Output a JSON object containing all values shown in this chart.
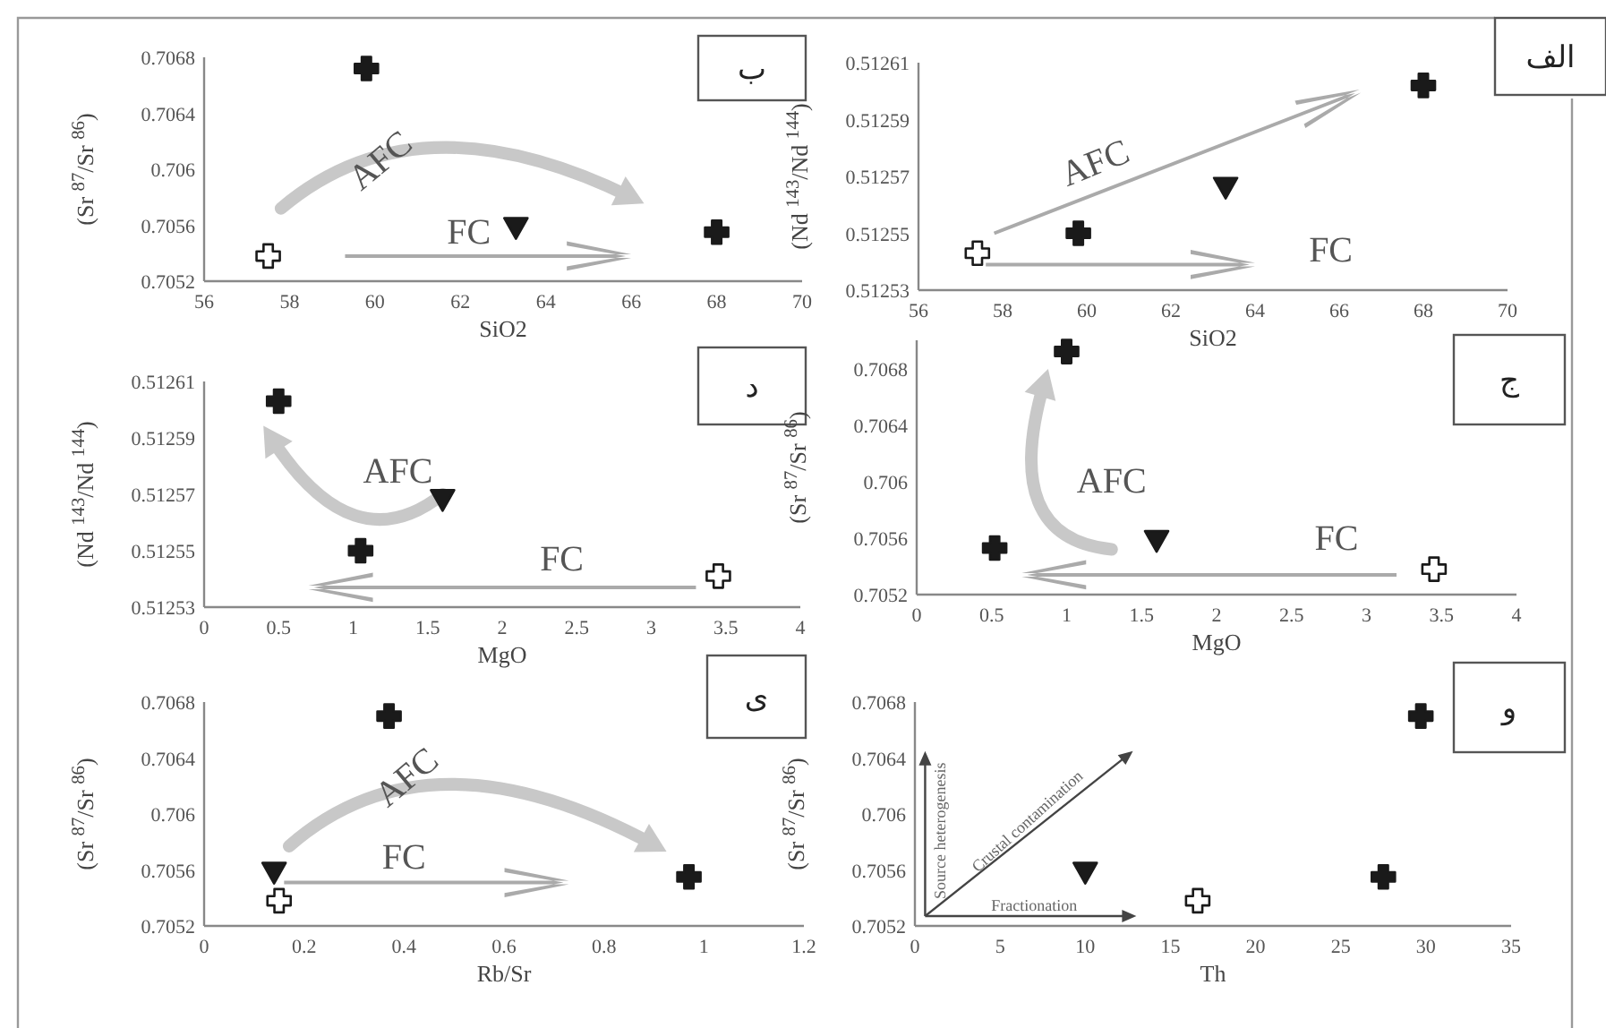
{
  "chart_data": [
    {
      "type": "scatter",
      "title": "ب",
      "xlabel": "SiO2",
      "ylabel": "(Sr $^{87}$/Sr $^{86}$)",
      "xlim": [
        56,
        70
      ],
      "ylim": [
        0.7052,
        0.7068
      ],
      "xticks": [
        56,
        58,
        60,
        62,
        64,
        66,
        68,
        70
      ],
      "yticks": [
        0.7052,
        0.7056,
        0.706,
        0.7064,
        0.7068
      ],
      "annotations": [
        "AFC",
        "FC"
      ],
      "series": [
        {
          "color": "#1a1a1a",
          "marker": "cross",
          "x": [
            59.8,
            68
          ],
          "values": [
            0.70672,
            0.70555
          ]
        },
        {
          "color": "#ffffff",
          "marker": "cross",
          "x": [
            57.5
          ],
          "values": [
            0.70538
          ]
        },
        {
          "color": "#1a1a1a",
          "marker": "triangle",
          "x": [
            63.3
          ],
          "values": [
            0.70558
          ]
        }
      ]
    },
    {
      "type": "scatter",
      "title": "الف",
      "xlabel": "SiO2",
      "ylabel": "(Nd $^{143}$/Nd $^{144}$)",
      "xlim": [
        56,
        70
      ],
      "ylim": [
        0.51253,
        0.51261
      ],
      "xticks": [
        56,
        58,
        60,
        62,
        64,
        66,
        68,
        70
      ],
      "yticks": [
        0.51253,
        0.51255,
        0.51257,
        0.51259,
        0.51261
      ],
      "annotations": [
        "AFC",
        "FC"
      ],
      "series": [
        {
          "color": "#1a1a1a",
          "marker": "cross",
          "x": [
            59.8,
            68
          ],
          "values": [
            0.51255,
            0.512602
          ]
        },
        {
          "color": "#ffffff",
          "marker": "cross",
          "x": [
            57.4
          ],
          "values": [
            0.512543
          ]
        },
        {
          "color": "#1a1a1a",
          "marker": "triangle",
          "x": [
            63.3
          ],
          "values": [
            0.512566
          ]
        }
      ]
    },
    {
      "type": "scatter",
      "title": "د",
      "xlabel": "MgO",
      "ylabel": "(Nd $^{143}$/Nd $^{144}$)",
      "xlim": [
        0,
        4
      ],
      "ylim": [
        0.51253,
        0.51261
      ],
      "xticks": [
        0,
        0.5,
        1,
        1.5,
        2,
        2.5,
        3,
        3.5,
        4
      ],
      "yticks": [
        0.51253,
        0.51255,
        0.51257,
        0.51259,
        0.51261
      ],
      "annotations": [
        "AFC",
        "FC"
      ],
      "series": [
        {
          "color": "#1a1a1a",
          "marker": "cross",
          "x": [
            0.5,
            1.05
          ],
          "values": [
            0.512603,
            0.51255
          ]
        },
        {
          "color": "#ffffff",
          "marker": "cross",
          "x": [
            3.45
          ],
          "values": [
            0.512541
          ]
        },
        {
          "color": "#1a1a1a",
          "marker": "triangle",
          "x": [
            1.6
          ],
          "values": [
            0.512568
          ]
        }
      ]
    },
    {
      "type": "scatter",
      "title": "ج",
      "xlabel": "MgO",
      "ylabel": "(Sr $^{87}$/Sr $^{86}$)",
      "xlim": [
        0,
        4
      ],
      "ylim": [
        0.7052,
        0.707
      ],
      "xticks": [
        0,
        0.5,
        1,
        1.5,
        2,
        2.5,
        3,
        3.5,
        4
      ],
      "yticks": [
        0.7052,
        0.7056,
        0.706,
        0.7064,
        0.7068
      ],
      "annotations": [
        "AFC",
        "FC"
      ],
      "series": [
        {
          "color": "#1a1a1a",
          "marker": "cross",
          "x": [
            1.0,
            0.52
          ],
          "values": [
            0.70692,
            0.70553
          ]
        },
        {
          "color": "#ffffff",
          "marker": "cross",
          "x": [
            3.45
          ],
          "values": [
            0.70538
          ]
        },
        {
          "color": "#1a1a1a",
          "marker": "triangle",
          "x": [
            1.6
          ],
          "values": [
            0.70558
          ]
        }
      ]
    },
    {
      "type": "scatter",
      "title": "ی",
      "xlabel": "Rb/Sr",
      "ylabel": "(Sr $^{87}$/Sr $^{86}$)",
      "xlim": [
        0,
        1.2
      ],
      "ylim": [
        0.7052,
        0.7068
      ],
      "xticks": [
        0,
        0.2,
        0.4,
        0.6,
        0.8,
        1,
        1.2
      ],
      "yticks": [
        0.7052,
        0.7056,
        0.706,
        0.7064,
        0.7068
      ],
      "annotations": [
        "AFC",
        "FC"
      ],
      "series": [
        {
          "color": "#1a1a1a",
          "marker": "cross",
          "x": [
            0.37,
            0.97
          ],
          "values": [
            0.7067,
            0.70555
          ]
        },
        {
          "color": "#ffffff",
          "marker": "cross",
          "x": [
            0.15
          ],
          "values": [
            0.70538
          ]
        },
        {
          "color": "#1a1a1a",
          "marker": "triangle",
          "x": [
            0.14
          ],
          "values": [
            0.70558
          ]
        }
      ]
    },
    {
      "type": "scatter",
      "title": "و",
      "xlabel": "Th",
      "ylabel": "(Sr $^{87}$/Sr $^{86}$)",
      "xlim": [
        0,
        35
      ],
      "ylim": [
        0.7052,
        0.7068
      ],
      "xticks": [
        0,
        5,
        10,
        15,
        20,
        25,
        30,
        35
      ],
      "yticks": [
        0.7052,
        0.7056,
        0.706,
        0.7064,
        0.7068
      ],
      "annotations": [
        "Source heterogenesis",
        "Crustal contamination",
        "Fractionation"
      ],
      "series": [
        {
          "color": "#1a1a1a",
          "marker": "cross",
          "x": [
            29.7,
            27.5
          ],
          "values": [
            0.7067,
            0.70555
          ]
        },
        {
          "color": "#ffffff",
          "marker": "cross",
          "x": [
            16.6
          ],
          "values": [
            0.70538
          ]
        },
        {
          "color": "#1a1a1a",
          "marker": "triangle",
          "x": [
            10
          ],
          "values": [
            0.70558
          ]
        }
      ]
    }
  ]
}
